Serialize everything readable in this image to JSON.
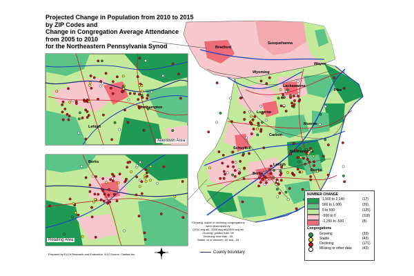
{
  "title": {
    "lines": [
      "Projected Change in Population from 2010 to 2015",
      "by ZIP Codes and",
      "Change in Congregation Average Attendance",
      "from 2005 to 2010",
      "for the Northeastern Pennsylvania Synod"
    ]
  },
  "insets": {
    "allentown": {
      "label": "Allentown Area",
      "counties": [
        "Northampton",
        "Lehigh"
      ]
    },
    "reading": {
      "label": "Reading Area",
      "counties": [
        "Berks"
      ]
    }
  },
  "main_map": {
    "counties": [
      "Bradford",
      "Susquehanna",
      "Wayne",
      "Wyoming",
      "Lackawanna",
      "Pike",
      "Luzerne",
      "Carbon",
      "Monroe",
      "Schuylkill",
      "Northampton",
      "Lehigh",
      "Berks",
      "Bucks"
    ]
  },
  "legend": {
    "number_change_title": "NUMBER CHANGE",
    "ranges": [
      {
        "low": "1,000",
        "high": "2,140",
        "count": "(17)",
        "color": "#1f9a55"
      },
      {
        "low": "500",
        "high": "1,000",
        "count": "(26)",
        "color": "#5cc487"
      },
      {
        "low": "0",
        "high": "500",
        "count": "(125)",
        "color": "#c4ea9c"
      },
      {
        "low": "-500",
        "high": "0",
        "count": "(118)",
        "color": "#f7c8cc"
      },
      {
        "low": "-1,250",
        "high": "-500",
        "count": "(8)",
        "color": "#f06b78"
      }
    ],
    "congregations_title": "Congregations",
    "congregations": [
      {
        "label": "Growing",
        "count": "(30)",
        "color": "#2e9b3d"
      },
      {
        "label": "Stable",
        "count": "(43)",
        "color": "#f2e23a"
      },
      {
        "label": "Declining",
        "count": "(171)",
        "color": "#c8171f"
      },
      {
        "label": "Missing or other data",
        "count": "(43)",
        "color": "#ffffff"
      }
    ]
  },
  "note": {
    "lines": [
      "*Growing, stable or declining congregations",
      "were determined by",
      "(2010 avg att - 2005 avg att)/2005 avg att",
      "Growing: greater than .05",
      "Declining: less than -.05",
      "Stable: at or between .05 and -.05"
    ]
  },
  "county_boundary_label": "County boundary",
  "credit": "Prepared by ELCA Research and Evaluation, 9/12 Source: Claritas Inc.",
  "compass_letters": [
    "N",
    "S",
    "W",
    "E"
  ]
}
